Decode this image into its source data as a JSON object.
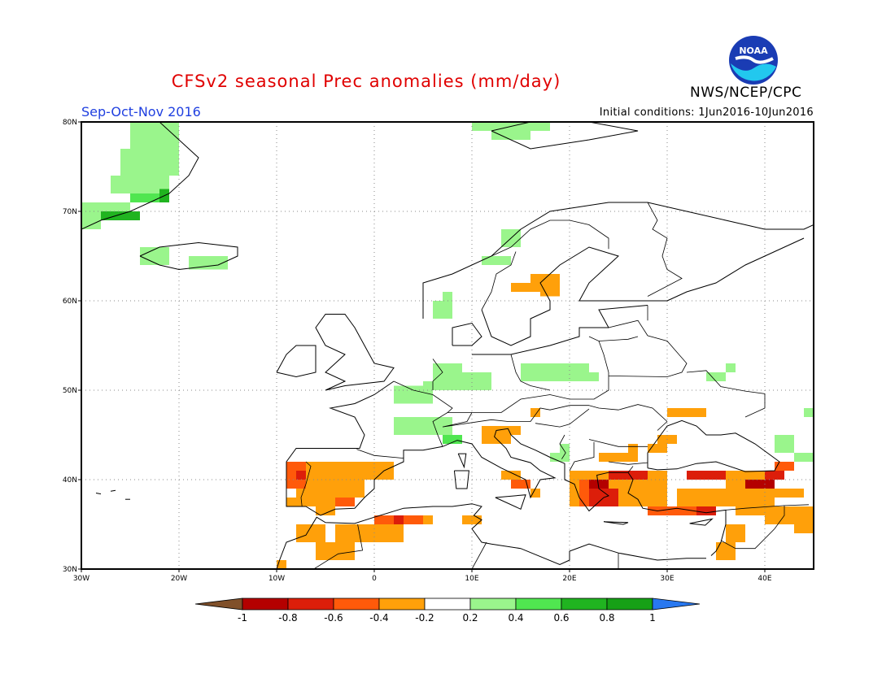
{
  "header": {
    "title": "CFSv2 seasonal Prec anomalies (mm/day)",
    "agency": "NWS/NCEP/CPC",
    "logo_text": "NOAA",
    "season": "Sep-Oct-Nov 2016",
    "initial_conditions": "Initial conditions: 1Jun2016-10Jun2016"
  },
  "map": {
    "lon_range": [
      -30,
      45
    ],
    "lat_range": [
      30,
      80
    ],
    "lon_ticks": [
      "30W",
      "20W",
      "10W",
      "0",
      "10E",
      "20E",
      "30E",
      "40E"
    ],
    "lat_ticks": [
      "80N",
      "70N",
      "60N",
      "50N",
      "40N",
      "30N"
    ],
    "gridlines": true
  },
  "legend": {
    "labels": [
      "-1",
      "-0.8",
      "-0.6",
      "-0.4",
      "-0.2",
      "0.2",
      "0.4",
      "0.6",
      "0.8",
      "1"
    ],
    "colors": [
      "#80502a",
      "#b40000",
      "#dc1e0a",
      "#ff5a0a",
      "#ffa00a",
      "#ffffff",
      "#9af58c",
      "#50e650",
      "#20b420",
      "#16a016",
      "#2878f0"
    ]
  },
  "anomaly_colors": {
    "light_green": "#9af58c",
    "green": "#50e650",
    "dark_green": "#20b420",
    "orange": "#ffa00a",
    "red_orange": "#ff5a0a",
    "red": "#dc1e0a",
    "dark_red": "#b40000"
  }
}
